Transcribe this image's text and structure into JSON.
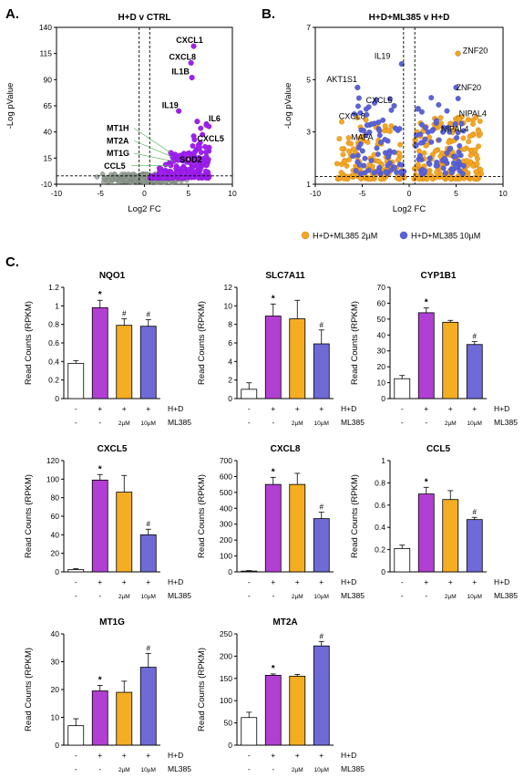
{
  "panels": {
    "A": "A.",
    "B": "B.",
    "C": "C."
  },
  "chart_data": [
    {
      "id": "volcano-a",
      "type": "scatter",
      "title": "H+D v CTRL",
      "xlabel": "Log2 FC",
      "ylabel": "-Log pValue",
      "xlim": [
        -10,
        10
      ],
      "ylim": [
        -10,
        140
      ],
      "xticks": [
        "-10",
        "-5",
        "0",
        "5",
        "10"
      ],
      "yticks": [
        "-10",
        "15",
        "40",
        "65",
        "90",
        "115",
        "140"
      ],
      "thresholds": {
        "vlines": [
          -0.6,
          0.6
        ],
        "hline": -2
      },
      "colors": {
        "sig": "#a020f0",
        "nonsig": "#8e9a8e"
      },
      "labels": [
        {
          "text": "CXCL1",
          "x": 5.6,
          "y": 122,
          "lx": 3.6,
          "ly": 125,
          "leader": false
        },
        {
          "text": "CXCL8",
          "x": 5.3,
          "y": 106,
          "lx": 2.8,
          "ly": 109,
          "leader": false
        },
        {
          "text": "IL1B",
          "x": 5.4,
          "y": 92,
          "lx": 3.1,
          "ly": 95,
          "leader": false
        },
        {
          "text": "IL19",
          "x": 3.9,
          "y": 60,
          "lx": 2.0,
          "ly": 63,
          "leader": false
        },
        {
          "text": "IL6",
          "x": 6.0,
          "y": 50,
          "lx": 7.3,
          "ly": 50,
          "leader": false
        },
        {
          "text": "CXCL5",
          "x": 5.6,
          "y": 36,
          "lx": 6.0,
          "ly": 31,
          "leader": false
        },
        {
          "text": "SOD2",
          "x": 3.8,
          "y": 13,
          "lx": 4.0,
          "ly": 11,
          "leader": false
        },
        {
          "text": "MT1H",
          "x": 3.0,
          "y": 20,
          "lx": -4.3,
          "ly": 41,
          "leader": true
        },
        {
          "text": "MT2A",
          "x": 3.2,
          "y": 16,
          "lx": -4.3,
          "ly": 29,
          "leader": true
        },
        {
          "text": "MT1G",
          "x": 3.3,
          "y": 12,
          "lx": -4.3,
          "ly": 17,
          "leader": true
        },
        {
          "text": "CCL5",
          "x": 3.0,
          "y": 8,
          "lx": -4.6,
          "ly": 5,
          "leader": true
        }
      ]
    },
    {
      "id": "volcano-b",
      "type": "scatter",
      "title": "H+D+ML385 v H+D",
      "xlabel": "Log2 FC",
      "ylabel": "-Log pValue",
      "xlim": [
        -10,
        10
      ],
      "ylim": [
        1,
        7
      ],
      "xticks": [
        "-10",
        "-5",
        "0",
        "5",
        "10"
      ],
      "yticks": [
        "1",
        "3",
        "5",
        "7"
      ],
      "thresholds": {
        "vlines": [
          -0.6,
          0.6
        ],
        "hline": 1.3
      },
      "series": [
        {
          "name": "H+D+ML385 2µM",
          "color": "#f5a623"
        },
        {
          "name": "H+D+ML385 10µM",
          "color": "#5b63d8"
        }
      ],
      "legend_position": "bottom",
      "labels": [
        {
          "text": "ZNF20",
          "x": 5.2,
          "y": 6.0,
          "lx": 5.7,
          "ly": 6.0,
          "color": "#e07a2a"
        },
        {
          "text": "IL19",
          "x": -0.8,
          "y": 5.6,
          "lx": -3.7,
          "ly": 5.8,
          "color": "#4b56c8"
        },
        {
          "text": "AKT1S1",
          "x": -5.5,
          "y": 4.7,
          "lx": -8.8,
          "ly": 4.9,
          "color": "#4b56c8"
        },
        {
          "text": "ZNF20",
          "x": 5.0,
          "y": 4.7,
          "lx": 5.0,
          "ly": 4.6,
          "color": "#4b56c8"
        },
        {
          "text": "CXCL5",
          "x": -1.6,
          "y": 4.0,
          "lx": -4.6,
          "ly": 4.1,
          "color": "#4b56c8"
        },
        {
          "text": "NIPAL4",
          "x": 5.3,
          "y": 3.5,
          "lx": 5.3,
          "ly": 3.6,
          "color": "#e07a2a"
        },
        {
          "text": "CXCL8",
          "x": -4.0,
          "y": 3.3,
          "lx": -7.5,
          "ly": 3.5,
          "color": "#4b56c8"
        },
        {
          "text": "NIPAL4",
          "x": 3.6,
          "y": 3.0,
          "lx": 3.4,
          "ly": 3.0,
          "color": "#4b56c8"
        },
        {
          "text": "MAFA",
          "x": -3.0,
          "y": 2.6,
          "lx": -6.2,
          "ly": 2.7,
          "color": "#4b56c8"
        }
      ]
    },
    {
      "id": "bar-nqo1",
      "type": "bar",
      "title": "NQO1",
      "ylabel": "Read Counts (RPKM)",
      "ylim": [
        0,
        1.2
      ],
      "yticks": [
        "0",
        "0.2",
        "0.4",
        "0.6",
        "0.8",
        "1",
        "1.2"
      ],
      "values": [
        0.38,
        0.98,
        0.79,
        0.78
      ],
      "errors": [
        0.03,
        0.08,
        0.07,
        0.07
      ],
      "annotations": [
        "",
        "*",
        "#",
        "#"
      ]
    },
    {
      "id": "bar-slc7a11",
      "type": "bar",
      "title": "SLC7A11",
      "ylabel": "Read Counts (RPKM)",
      "ylim": [
        0,
        12
      ],
      "yticks": [
        "0",
        "2",
        "4",
        "6",
        "8",
        "10",
        "12"
      ],
      "values": [
        1.0,
        8.9,
        8.6,
        5.9
      ],
      "errors": [
        0.7,
        1.3,
        2.0,
        1.5
      ],
      "annotations": [
        "",
        "*",
        "",
        "#"
      ]
    },
    {
      "id": "bar-cyp1b1",
      "type": "bar",
      "title": "CYP1B1",
      "ylabel": "Read Counts (RPKM)",
      "ylim": [
        0,
        70
      ],
      "yticks": [
        "0",
        "10",
        "20",
        "30",
        "40",
        "50",
        "60",
        "70"
      ],
      "values": [
        12.5,
        54,
        48,
        34
      ],
      "errors": [
        2.0,
        3.0,
        1.2,
        1.8
      ],
      "annotations": [
        "",
        "*",
        "",
        "#"
      ]
    },
    {
      "id": "bar-cxcl5",
      "type": "bar",
      "title": "CXCL5",
      "ylabel": "Read Counts (RPKM)",
      "ylim": [
        0,
        120
      ],
      "yticks": [
        "0",
        "20",
        "40",
        "60",
        "80",
        "100",
        "120"
      ],
      "values": [
        2.5,
        99,
        86,
        40
      ],
      "errors": [
        1.0,
        6,
        18,
        6
      ],
      "annotations": [
        "",
        "*",
        "",
        "#"
      ]
    },
    {
      "id": "bar-cxcl8",
      "type": "bar",
      "title": "CXCL8",
      "ylabel": "Read Counts (RPKM)",
      "ylim": [
        0,
        700
      ],
      "yticks": [
        "0",
        "100",
        "200",
        "300",
        "400",
        "500",
        "600",
        "700"
      ],
      "values": [
        5,
        550,
        550,
        335
      ],
      "errors": [
        3,
        45,
        70,
        40
      ],
      "annotations": [
        "",
        "*",
        "",
        "#"
      ]
    },
    {
      "id": "bar-ccl5",
      "type": "bar",
      "title": "CCL5",
      "ylabel": "Read Counts (RPKM)",
      "ylim": [
        0,
        1
      ],
      "yticks": [
        "0",
        "0.2",
        "0.4",
        "0.6",
        "0.8",
        "1"
      ],
      "values": [
        0.21,
        0.7,
        0.65,
        0.47
      ],
      "errors": [
        0.03,
        0.06,
        0.08,
        0.02
      ],
      "annotations": [
        "",
        "*",
        "",
        "#"
      ]
    },
    {
      "id": "bar-mt1g",
      "type": "bar",
      "title": "MT1G",
      "ylabel": "Read Counts (RPKM)",
      "ylim": [
        0,
        40
      ],
      "yticks": [
        "0",
        "10",
        "20",
        "30",
        "40"
      ],
      "values": [
        7,
        19.5,
        19,
        28
      ],
      "errors": [
        2.5,
        2,
        4,
        5
      ],
      "annotations": [
        "",
        "*",
        "",
        "#"
      ]
    },
    {
      "id": "bar-mt2a",
      "type": "bar",
      "title": "MT2A",
      "ylabel": "Read Counts (RPKM)",
      "ylim": [
        0,
        250
      ],
      "yticks": [
        "0",
        "50",
        "100",
        "150",
        "200",
        "250"
      ],
      "values": [
        62,
        157,
        155,
        223
      ],
      "errors": [
        12,
        3,
        4,
        10
      ],
      "annotations": [
        "",
        "*",
        "",
        "#"
      ]
    }
  ],
  "bar_colors": [
    "#ffffff",
    "#b23fd3",
    "#f5ad22",
    "#6e6ad6"
  ],
  "conditions": {
    "hd_label": "H+D",
    "ml_label": "ML385",
    "hd": [
      "-",
      "+",
      "+",
      "+"
    ],
    "ml": [
      "-",
      "-",
      "2µM",
      "10µM"
    ]
  }
}
